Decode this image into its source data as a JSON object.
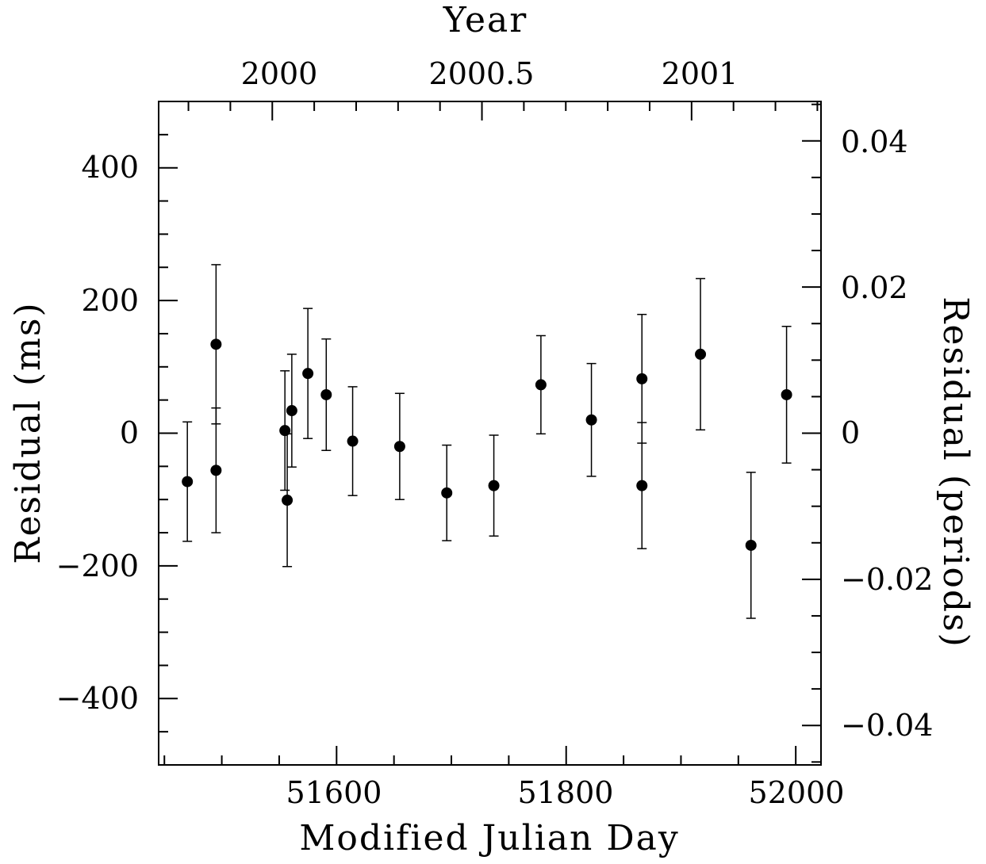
{
  "chart_data": {
    "type": "scatter",
    "title": "",
    "xlabel": "Modified Julian Day",
    "ylabel": "Residual (ms)",
    "x2label": "Year",
    "y2label": "Residual (periods)",
    "xlim": [
      51445,
      52022
    ],
    "ylim": [
      -500,
      500
    ],
    "y2lim": [
      -0.0454,
      0.0454
    ],
    "x_ticks": [
      "51600",
      "51800",
      "52000"
    ],
    "y_ticks": [
      "400",
      "200",
      "0",
      "−200",
      "−400"
    ],
    "x2_ticks": [
      "2000",
      "2000.5",
      "2001"
    ],
    "y2_ticks": [
      "0.04",
      "0.02",
      "0",
      "−0.02",
      "−0.04"
    ],
    "grid": false,
    "legend": "none",
    "error_bars": true,
    "points": [
      {
        "x": 51470,
        "y": -73,
        "err": 90
      },
      {
        "x": 51495,
        "y": 134,
        "err": 120
      },
      {
        "x": 51495,
        "y": -56,
        "err": 94
      },
      {
        "x": 51555,
        "y": 4,
        "err": 90
      },
      {
        "x": 51557,
        "y": -101,
        "err": 100
      },
      {
        "x": 51561,
        "y": 34,
        "err": 85
      },
      {
        "x": 51575,
        "y": 90,
        "err": 98
      },
      {
        "x": 51591,
        "y": 58,
        "err": 84
      },
      {
        "x": 51614,
        "y": -12,
        "err": 82
      },
      {
        "x": 51655,
        "y": -20,
        "err": 80
      },
      {
        "x": 51696,
        "y": -90,
        "err": 72
      },
      {
        "x": 51737,
        "y": -79,
        "err": 76
      },
      {
        "x": 51778,
        "y": 73,
        "err": 74
      },
      {
        "x": 51822,
        "y": 20,
        "err": 85
      },
      {
        "x": 51866,
        "y": 82,
        "err": 97
      },
      {
        "x": 51866,
        "y": -79,
        "err": 95
      },
      {
        "x": 51917,
        "y": 119,
        "err": 114
      },
      {
        "x": 51961,
        "y": -169,
        "err": 110
      },
      {
        "x": 51992,
        "y": 58,
        "err": 103
      }
    ]
  }
}
